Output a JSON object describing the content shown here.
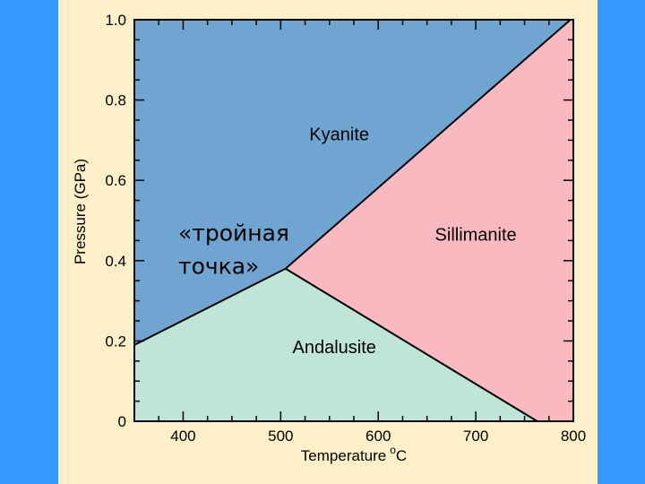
{
  "chart_data": {
    "type": "area",
    "title": "",
    "xlabel": "Temperature",
    "xlabel_unit_sup": "o",
    "xlabel_unit": "C",
    "ylabel": "Pressure (GPa)",
    "xlim": [
      350,
      800
    ],
    "ylim": [
      0,
      1.0
    ],
    "x_ticks": [
      400,
      500,
      600,
      700,
      800
    ],
    "x_tick_labels": [
      "400",
      "500",
      "600",
      "700",
      "800"
    ],
    "y_ticks": [
      0,
      0.2,
      0.4,
      0.6,
      0.8,
      1.0
    ],
    "y_tick_labels": [
      "0",
      "0.2",
      "0.4",
      "0.6",
      "0.8",
      "1.0"
    ],
    "triple_point": {
      "T": 505,
      "P": 0.38
    },
    "boundaries": [
      {
        "name": "kyanite-andalusite",
        "points": [
          [
            350,
            0.19
          ],
          [
            505,
            0.38
          ]
        ]
      },
      {
        "name": "kyanite-sillimanite",
        "points": [
          [
            505,
            0.38
          ],
          [
            797,
            1.0
          ]
        ]
      },
      {
        "name": "andalusite-sillimanite",
        "points": [
          [
            505,
            0.38
          ],
          [
            763,
            0.0
          ]
        ]
      }
    ],
    "regions": [
      {
        "name": "Kyanite",
        "color": "#6fa5d0",
        "label_at": [
          560,
          0.7
        ]
      },
      {
        "name": "Sillimanite",
        "color": "#f9b9c0",
        "label_at": [
          700,
          0.45
        ]
      },
      {
        "name": "Andalusite",
        "color": "#bfe5d6",
        "label_at": [
          555,
          0.17
        ]
      }
    ],
    "annotation": {
      "lines": [
        "«тройная",
        "точка»"
      ],
      "at": [
        395,
        0.45
      ]
    }
  }
}
